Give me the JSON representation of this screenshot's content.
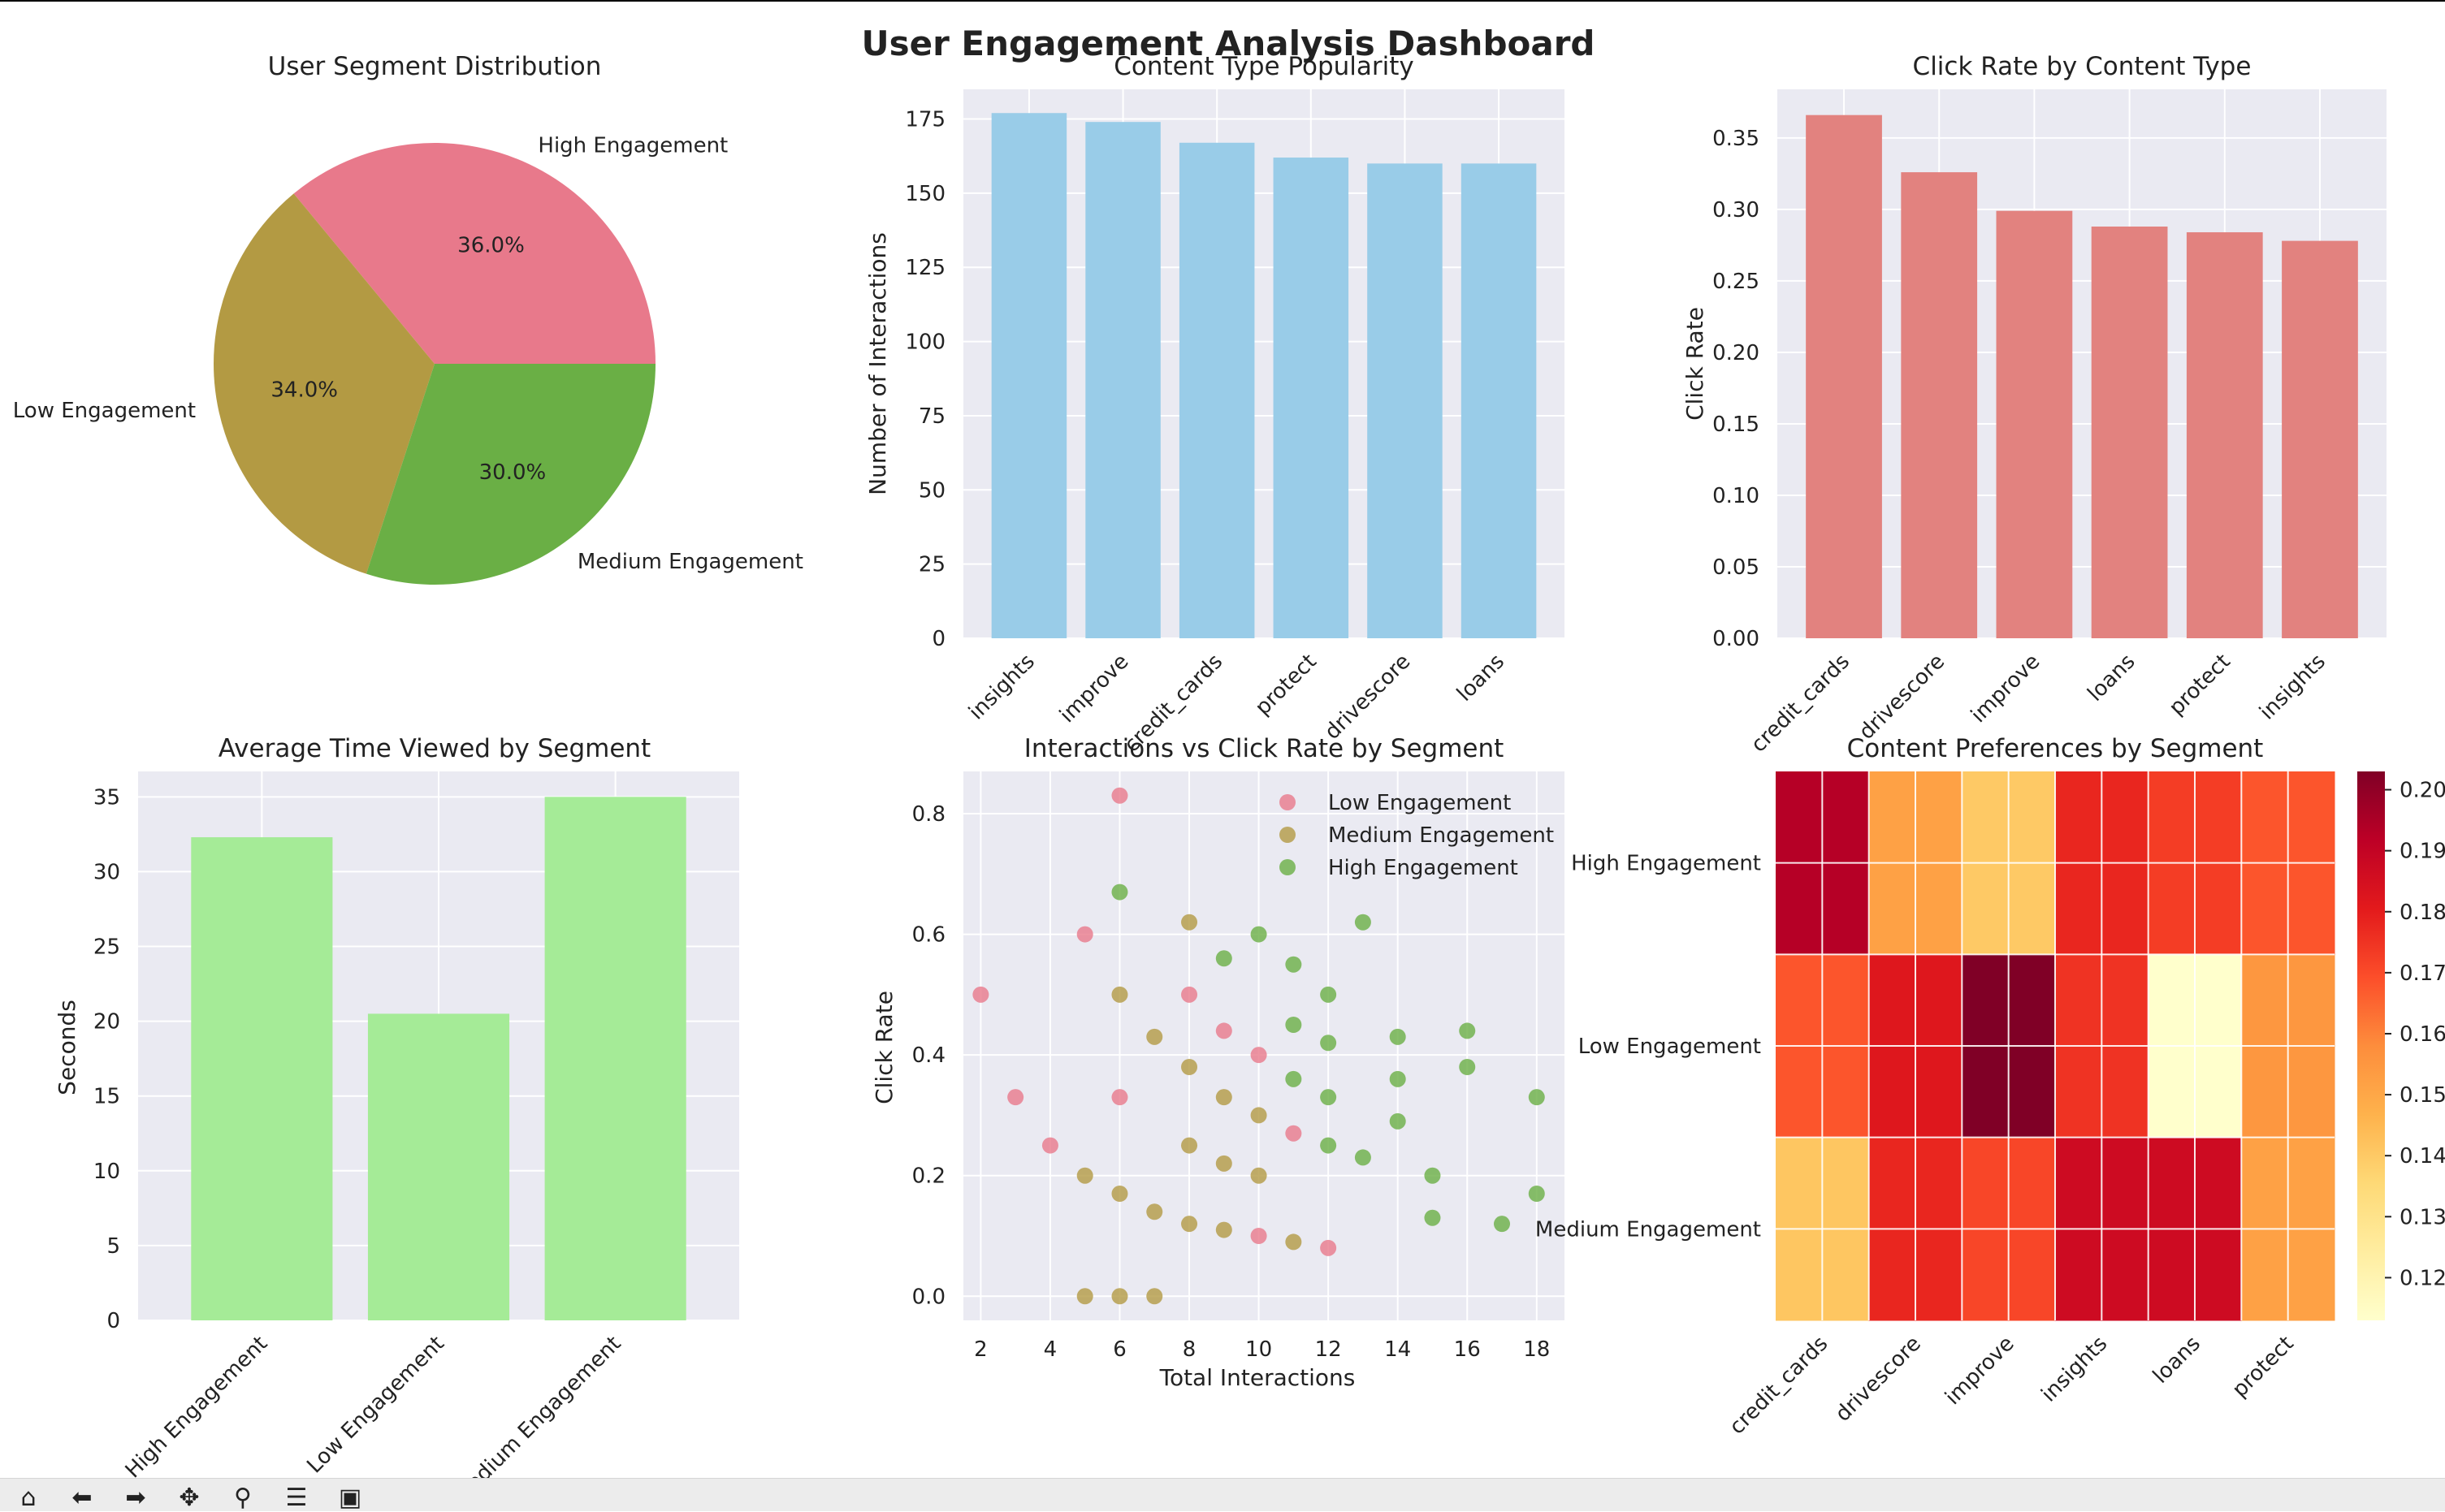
{
  "figure": {
    "title": "User Engagement Analysis Dashboard"
  },
  "toolbar": {
    "buttons": [
      {
        "name": "home-icon",
        "glyph": "⌂"
      },
      {
        "name": "back-icon",
        "glyph": "⬅"
      },
      {
        "name": "forward-icon",
        "glyph": "➡"
      },
      {
        "name": "pan-icon",
        "glyph": "✥"
      },
      {
        "name": "zoom-icon",
        "glyph": "⚲"
      },
      {
        "name": "configure-icon",
        "glyph": "☰"
      },
      {
        "name": "save-icon",
        "glyph": "▣"
      }
    ]
  },
  "chart_data": [
    {
      "type": "pie",
      "title": "User Segment Distribution",
      "labels": [
        "High Engagement",
        "Low Engagement",
        "Medium Engagement"
      ],
      "values": [
        36.0,
        34.0,
        30.0
      ],
      "pct_labels": [
        "36.0%",
        "34.0%",
        "30.0%"
      ],
      "colors": [
        "#e8798b",
        "#b39a43",
        "#6aaf45"
      ]
    },
    {
      "type": "bar",
      "title": "Content Type Popularity",
      "xlabel": "",
      "ylabel": "Number of Interactions",
      "categories": [
        "insights",
        "improve",
        "credit_cards",
        "protect",
        "drivescore",
        "loans"
      ],
      "values": [
        177,
        174,
        167,
        162,
        160,
        160
      ],
      "ylim": [
        0,
        185
      ],
      "yticks": [
        0,
        25,
        50,
        75,
        100,
        125,
        150,
        175
      ],
      "color": "#99cce8"
    },
    {
      "type": "bar",
      "title": "Click Rate by Content Type",
      "xlabel": "",
      "ylabel": "Click Rate",
      "categories": [
        "credit_cards",
        "drivescore",
        "improve",
        "loans",
        "protect",
        "insights"
      ],
      "values": [
        0.366,
        0.326,
        0.299,
        0.288,
        0.284,
        0.278
      ],
      "ylim": [
        0,
        0.384
      ],
      "yticks": [
        "0.00",
        "0.05",
        "0.10",
        "0.15",
        "0.20",
        "0.25",
        "0.30",
        "0.35"
      ],
      "color": "#e2827f"
    },
    {
      "type": "bar",
      "title": "Average Time Viewed by Segment",
      "xlabel": "",
      "ylabel": "Seconds",
      "categories": [
        "High Engagement",
        "Low Engagement",
        "Medium Engagement"
      ],
      "values": [
        32.3,
        20.5,
        35.0
      ],
      "ylim": [
        0,
        36.7
      ],
      "yticks": [
        0,
        5,
        10,
        15,
        20,
        25,
        30,
        35
      ],
      "color": "#a5eb97"
    },
    {
      "type": "scatter",
      "title": "Interactions vs Click Rate by Segment",
      "xlabel": "Total Interactions",
      "ylabel": "Click Rate",
      "xlim": [
        1.5,
        18.8
      ],
      "ylim": [
        -0.04,
        0.87
      ],
      "xticks": [
        2,
        4,
        6,
        8,
        10,
        12,
        14,
        16,
        18
      ],
      "yticks": [
        "0.0",
        "0.2",
        "0.4",
        "0.6",
        "0.8"
      ],
      "legend_position": "top-right",
      "series": [
        {
          "name": "Low Engagement",
          "color": "#e8798b",
          "points": [
            [
              2,
              0.5
            ],
            [
              3,
              0.33
            ],
            [
              4,
              0.25
            ],
            [
              5,
              0.6
            ],
            [
              6,
              0.83
            ],
            [
              6,
              0.33
            ],
            [
              8,
              0.5
            ],
            [
              9,
              0.44
            ],
            [
              10,
              0.4
            ],
            [
              10,
              0.1
            ],
            [
              11,
              0.27
            ],
            [
              12,
              0.08
            ]
          ]
        },
        {
          "name": "Medium Engagement",
          "color": "#b39a43",
          "points": [
            [
              5,
              0.0
            ],
            [
              5,
              0.2
            ],
            [
              6,
              0.0
            ],
            [
              6,
              0.17
            ],
            [
              6,
              0.5
            ],
            [
              7,
              0.0
            ],
            [
              7,
              0.14
            ],
            [
              7,
              0.43
            ],
            [
              8,
              0.12
            ],
            [
              8,
              0.25
            ],
            [
              8,
              0.62
            ],
            [
              8,
              0.38
            ],
            [
              9,
              0.11
            ],
            [
              9,
              0.22
            ],
            [
              9,
              0.33
            ],
            [
              10,
              0.2
            ],
            [
              10,
              0.3
            ],
            [
              11,
              0.09
            ]
          ]
        },
        {
          "name": "High Engagement",
          "color": "#6aaf45",
          "points": [
            [
              6,
              0.67
            ],
            [
              9,
              0.56
            ],
            [
              10,
              0.6
            ],
            [
              11,
              0.55
            ],
            [
              11,
              0.45
            ],
            [
              11,
              0.36
            ],
            [
              12,
              0.5
            ],
            [
              12,
              0.42
            ],
            [
              12,
              0.33
            ],
            [
              12,
              0.25
            ],
            [
              13,
              0.62
            ],
            [
              13,
              0.23
            ],
            [
              14,
              0.43
            ],
            [
              14,
              0.36
            ],
            [
              14,
              0.29
            ],
            [
              15,
              0.2
            ],
            [
              15,
              0.13
            ],
            [
              16,
              0.44
            ],
            [
              16,
              0.38
            ],
            [
              17,
              0.12
            ],
            [
              18,
              0.33
            ],
            [
              18,
              0.17
            ]
          ]
        }
      ]
    },
    {
      "type": "heatmap",
      "title": "Content Preferences by Segment",
      "rows": [
        "High Engagement",
        "Low Engagement",
        "Medium Engagement"
      ],
      "columns": [
        "credit_cards",
        "drivescore",
        "improve",
        "insights",
        "loans",
        "protect"
      ],
      "values": [
        [
          0.193,
          0.152,
          0.14,
          0.178,
          0.173,
          0.168
        ],
        [
          0.168,
          0.182,
          0.203,
          0.175,
          0.113,
          0.155
        ],
        [
          0.141,
          0.178,
          0.171,
          0.187,
          0.187,
          0.152
        ]
      ],
      "colorbar_ticks": [
        "0.12",
        "0.13",
        "0.14",
        "0.15",
        "0.16",
        "0.17",
        "0.18",
        "0.19",
        "0.20"
      ],
      "vmin": 0.113,
      "vmax": 0.203,
      "colormap": "YlOrRd"
    }
  ]
}
